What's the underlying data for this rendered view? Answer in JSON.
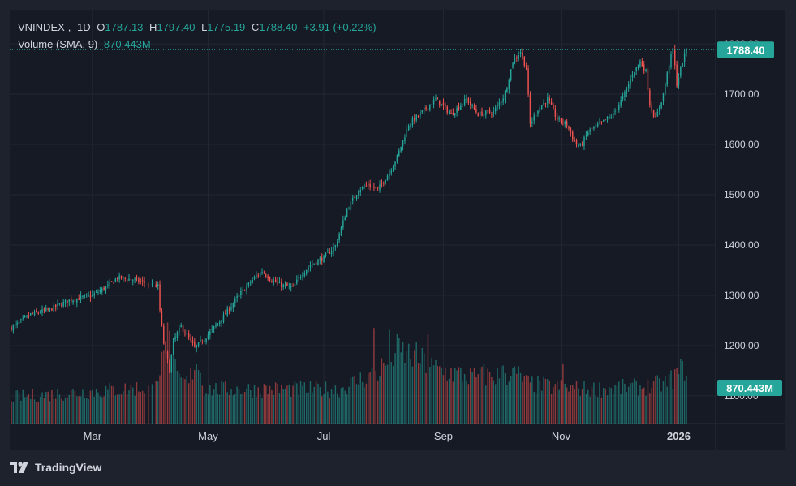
{
  "header": {
    "symbol": "VNINDEX",
    "interval": "1D",
    "open_label": "O",
    "open": "1787.13",
    "high_label": "H",
    "high": "1797.40",
    "low_label": "L",
    "low": "1775.19",
    "close_label": "C",
    "close": "1788.40",
    "change": "+3.91 (+0.22%)"
  },
  "volume_header": {
    "label": "Volume (SMA, 9)",
    "value": "870.443M"
  },
  "brand": {
    "name": "TradingView"
  },
  "colors": {
    "up": "#26a69a",
    "down": "#ef5350",
    "background": "#161a25",
    "grid": "#232733",
    "text": "#d1d4dc"
  },
  "chart_data": {
    "type": "candlestick",
    "y_ticks": [
      1100,
      1200,
      1300,
      1400,
      1500,
      1600,
      1700,
      1800
    ],
    "y_tick_labels": [
      "1100.00",
      "1200.00",
      "1300.00",
      "1400.00",
      "1500.00",
      "1600.00",
      "1700.00",
      "1800.00"
    ],
    "ylim": [
      1045,
      1855
    ],
    "x_ticks": [
      {
        "label": "Mar",
        "day": 42
      },
      {
        "label": "May",
        "day": 102
      },
      {
        "label": "Jul",
        "day": 162
      },
      {
        "label": "Sep",
        "day": 224
      },
      {
        "label": "Nov",
        "day": 285
      },
      {
        "label": "2026",
        "day": 346
      }
    ],
    "last_price_label": "1788.40",
    "last_volume_label": "870.443M",
    "price_keypoints": [
      [
        0,
        1235
      ],
      [
        10,
        1262
      ],
      [
        20,
        1272
      ],
      [
        30,
        1290
      ],
      [
        42,
        1300
      ],
      [
        50,
        1318
      ],
      [
        55,
        1335
      ],
      [
        62,
        1332
      ],
      [
        72,
        1322
      ],
      [
        76,
        1318
      ],
      [
        77,
        1270
      ],
      [
        79,
        1205
      ],
      [
        82,
        1150
      ],
      [
        84,
        1210
      ],
      [
        88,
        1238
      ],
      [
        92,
        1215
      ],
      [
        95,
        1195
      ],
      [
        102,
        1222
      ],
      [
        110,
        1258
      ],
      [
        118,
        1300
      ],
      [
        126,
        1335
      ],
      [
        130,
        1348
      ],
      [
        135,
        1330
      ],
      [
        140,
        1320
      ],
      [
        146,
        1315
      ],
      [
        150,
        1340
      ],
      [
        155,
        1360
      ],
      [
        162,
        1375
      ],
      [
        168,
        1398
      ],
      [
        174,
        1470
      ],
      [
        180,
        1510
      ],
      [
        185,
        1520
      ],
      [
        190,
        1510
      ],
      [
        196,
        1545
      ],
      [
        200,
        1575
      ],
      [
        206,
        1640
      ],
      [
        214,
        1668
      ],
      [
        220,
        1690
      ],
      [
        228,
        1660
      ],
      [
        236,
        1690
      ],
      [
        242,
        1660
      ],
      [
        250,
        1665
      ],
      [
        256,
        1700
      ],
      [
        260,
        1765
      ],
      [
        264,
        1785
      ],
      [
        267,
        1750
      ],
      [
        269,
        1640
      ],
      [
        273,
        1670
      ],
      [
        278,
        1690
      ],
      [
        283,
        1650
      ],
      [
        288,
        1640
      ],
      [
        292,
        1605
      ],
      [
        295,
        1595
      ],
      [
        299,
        1625
      ],
      [
        305,
        1640
      ],
      [
        312,
        1660
      ],
      [
        318,
        1700
      ],
      [
        322,
        1740
      ],
      [
        326,
        1765
      ],
      [
        329,
        1745
      ],
      [
        331,
        1680
      ],
      [
        334,
        1650
      ],
      [
        338,
        1700
      ],
      [
        341,
        1760
      ],
      [
        343,
        1790
      ],
      [
        345,
        1720
      ],
      [
        348,
        1765
      ],
      [
        350,
        1788.4
      ]
    ],
    "volume_ylim": [
      0,
      1600
    ],
    "volume_keypoints": [
      [
        0,
        400
      ],
      [
        40,
        480
      ],
      [
        76,
        560
      ],
      [
        78,
        1350
      ],
      [
        82,
        1250
      ],
      [
        86,
        650
      ],
      [
        92,
        620
      ],
      [
        96,
        1000
      ],
      [
        100,
        520
      ],
      [
        140,
        520
      ],
      [
        170,
        520
      ],
      [
        190,
        780
      ],
      [
        200,
        1100
      ],
      [
        210,
        1000
      ],
      [
        220,
        820
      ],
      [
        240,
        700
      ],
      [
        262,
        750
      ],
      [
        268,
        600
      ],
      [
        280,
        560
      ],
      [
        300,
        520
      ],
      [
        330,
        560
      ],
      [
        340,
        620
      ],
      [
        350,
        870
      ]
    ],
    "volume_spikes": [
      [
        188,
        1450
      ],
      [
        196,
        1420
      ],
      [
        216,
        1350
      ],
      [
        245,
        900
      ],
      [
        255,
        880
      ],
      [
        286,
        900
      ]
    ]
  }
}
